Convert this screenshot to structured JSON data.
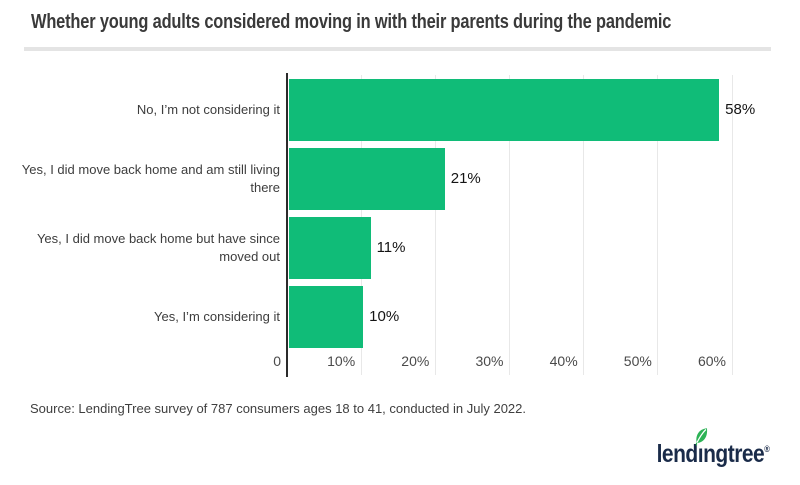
{
  "chart_data": {
    "type": "bar",
    "orientation": "horizontal",
    "title": "Whether young adults considered moving in with their parents during the pandemic",
    "categories": [
      "No, I’m not considering it",
      "Yes, I did move back home and am still living there",
      "Yes, I did move back home but have since moved out",
      "Yes, I’m considering it"
    ],
    "values": [
      58,
      21,
      11,
      10
    ],
    "value_labels": [
      "58%",
      "21%",
      "11%",
      "10%"
    ],
    "x_ticks": [
      {
        "value": 0,
        "label": "0"
      },
      {
        "value": 10,
        "label": "10%"
      },
      {
        "value": 20,
        "label": "20%"
      },
      {
        "value": 30,
        "label": "30%"
      },
      {
        "value": 40,
        "label": "40%"
      },
      {
        "value": 50,
        "label": "50%"
      },
      {
        "value": 60,
        "label": "60%"
      }
    ],
    "xlim": [
      0,
      63.5
    ],
    "grid": true,
    "legend": "none",
    "bar_color": "#10bc78",
    "axis_line_color": "#2b2b2b",
    "gridline_color": "#e8e8e8"
  },
  "footer": {
    "source": "Source: LendingTree survey of 787 consumers ages 18 to 41, conducted in July 2022.",
    "logo_text": "lendingtree",
    "logo_registered": "®",
    "logo_navy": "#1a2b49",
    "logo_leaf_green": "#2db356"
  }
}
